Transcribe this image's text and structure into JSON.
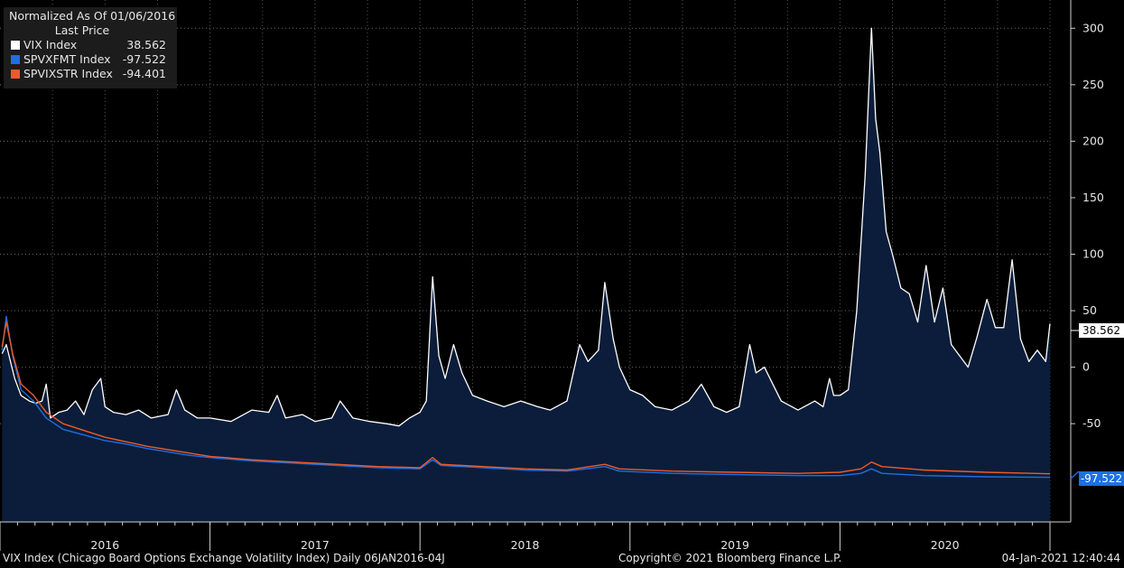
{
  "legend": {
    "header": "Normalized As Of 01/06/2016",
    "subheader": "Last Price",
    "items": [
      {
        "name": "VIX Index",
        "value": "38.562",
        "color": "#ffffff"
      },
      {
        "name": "SPVXFMT Index",
        "value": "-97.522",
        "color": "#1e6fe0"
      },
      {
        "name": "SPVIXSTR Index",
        "value": "-94.401",
        "color": "#f05a28"
      }
    ]
  },
  "price_tags": {
    "vix": "38.562",
    "spvxfmt": "-97.522"
  },
  "footer": {
    "left": "VIX Index (Chicago Board Options Exchange Volatility Index)  Daily 06JAN2016-04J",
    "center": "Copyright© 2021 Bloomberg Finance L.P.",
    "right": "04-Jan-2021 12:40:44"
  },
  "chart_data": {
    "type": "line",
    "ylim": [
      -137,
      325
    ],
    "yticks": [
      -50,
      0,
      50,
      100,
      150,
      200,
      250,
      300
    ],
    "x_categories": [
      "2016",
      "2017",
      "2018",
      "2019",
      "2020"
    ],
    "grid": true,
    "legend_position": "top-left",
    "series": [
      {
        "name": "VIX Index",
        "color": "#ffffff",
        "fill": "#0b1d3a",
        "points": [
          [
            2016.01,
            12
          ],
          [
            2016.03,
            20
          ],
          [
            2016.05,
            5
          ],
          [
            2016.07,
            -10
          ],
          [
            2016.1,
            -25
          ],
          [
            2016.14,
            -30
          ],
          [
            2016.17,
            -32
          ],
          [
            2016.2,
            -30
          ],
          [
            2016.22,
            -15
          ],
          [
            2016.24,
            -45
          ],
          [
            2016.28,
            -40
          ],
          [
            2016.32,
            -38
          ],
          [
            2016.36,
            -30
          ],
          [
            2016.4,
            -42
          ],
          [
            2016.44,
            -20
          ],
          [
            2016.48,
            -10
          ],
          [
            2016.5,
            -35
          ],
          [
            2016.54,
            -40
          ],
          [
            2016.6,
            -42
          ],
          [
            2016.66,
            -38
          ],
          [
            2016.72,
            -45
          ],
          [
            2016.8,
            -42
          ],
          [
            2016.84,
            -20
          ],
          [
            2016.88,
            -38
          ],
          [
            2016.94,
            -45
          ],
          [
            2017.0,
            -45
          ],
          [
            2017.1,
            -48
          ],
          [
            2017.2,
            -38
          ],
          [
            2017.28,
            -40
          ],
          [
            2017.32,
            -25
          ],
          [
            2017.36,
            -45
          ],
          [
            2017.44,
            -42
          ],
          [
            2017.5,
            -48
          ],
          [
            2017.58,
            -45
          ],
          [
            2017.62,
            -30
          ],
          [
            2017.68,
            -45
          ],
          [
            2017.76,
            -48
          ],
          [
            2017.84,
            -50
          ],
          [
            2017.9,
            -52
          ],
          [
            2017.95,
            -45
          ],
          [
            2018.0,
            -40
          ],
          [
            2018.03,
            -30
          ],
          [
            2018.06,
            80
          ],
          [
            2018.09,
            10
          ],
          [
            2018.12,
            -10
          ],
          [
            2018.16,
            20
          ],
          [
            2018.2,
            -5
          ],
          [
            2018.25,
            -25
          ],
          [
            2018.32,
            -30
          ],
          [
            2018.4,
            -35
          ],
          [
            2018.48,
            -30
          ],
          [
            2018.56,
            -35
          ],
          [
            2018.62,
            -38
          ],
          [
            2018.7,
            -30
          ],
          [
            2018.76,
            20
          ],
          [
            2018.8,
            5
          ],
          [
            2018.85,
            15
          ],
          [
            2018.88,
            75
          ],
          [
            2018.92,
            25
          ],
          [
            2018.95,
            0
          ],
          [
            2019.0,
            -20
          ],
          [
            2019.06,
            -25
          ],
          [
            2019.12,
            -35
          ],
          [
            2019.2,
            -38
          ],
          [
            2019.28,
            -30
          ],
          [
            2019.34,
            -15
          ],
          [
            2019.4,
            -35
          ],
          [
            2019.46,
            -40
          ],
          [
            2019.52,
            -35
          ],
          [
            2019.57,
            20
          ],
          [
            2019.6,
            -5
          ],
          [
            2019.64,
            0
          ],
          [
            2019.68,
            -15
          ],
          [
            2019.72,
            -30
          ],
          [
            2019.8,
            -38
          ],
          [
            2019.88,
            -30
          ],
          [
            2019.92,
            -35
          ],
          [
            2019.95,
            -10
          ],
          [
            2019.97,
            -25
          ],
          [
            2020.0,
            -25
          ],
          [
            2020.04,
            -20
          ],
          [
            2020.08,
            50
          ],
          [
            2020.12,
            170
          ],
          [
            2020.15,
            300
          ],
          [
            2020.17,
            220
          ],
          [
            2020.19,
            190
          ],
          [
            2020.22,
            120
          ],
          [
            2020.25,
            100
          ],
          [
            2020.29,
            70
          ],
          [
            2020.33,
            65
          ],
          [
            2020.37,
            40
          ],
          [
            2020.41,
            90
          ],
          [
            2020.45,
            40
          ],
          [
            2020.49,
            70
          ],
          [
            2020.53,
            20
          ],
          [
            2020.57,
            10
          ],
          [
            2020.61,
            0
          ],
          [
            2020.65,
            25
          ],
          [
            2020.7,
            60
          ],
          [
            2020.74,
            35
          ],
          [
            2020.78,
            35
          ],
          [
            2020.82,
            95
          ],
          [
            2020.86,
            25
          ],
          [
            2020.9,
            5
          ],
          [
            2020.94,
            15
          ],
          [
            2020.98,
            5
          ],
          [
            2021.0,
            38.562
          ]
        ]
      },
      {
        "name": "SPVXFMT Index",
        "color": "#1e6fe0",
        "points": [
          [
            2016.01,
            15
          ],
          [
            2016.03,
            45
          ],
          [
            2016.06,
            10
          ],
          [
            2016.1,
            -20
          ],
          [
            2016.16,
            -30
          ],
          [
            2016.22,
            -45
          ],
          [
            2016.3,
            -55
          ],
          [
            2016.4,
            -60
          ],
          [
            2016.5,
            -65
          ],
          [
            2016.6,
            -68
          ],
          [
            2016.7,
            -72
          ],
          [
            2016.8,
            -75
          ],
          [
            2016.9,
            -78
          ],
          [
            2017.0,
            -80
          ],
          [
            2017.2,
            -83
          ],
          [
            2017.4,
            -85
          ],
          [
            2017.6,
            -87
          ],
          [
            2017.8,
            -89
          ],
          [
            2018.0,
            -90
          ],
          [
            2018.06,
            -82
          ],
          [
            2018.1,
            -87
          ],
          [
            2018.3,
            -89
          ],
          [
            2018.5,
            -91
          ],
          [
            2018.7,
            -92
          ],
          [
            2018.88,
            -88
          ],
          [
            2018.95,
            -92
          ],
          [
            2019.2,
            -94
          ],
          [
            2019.5,
            -95
          ],
          [
            2019.8,
            -96
          ],
          [
            2020.0,
            -96
          ],
          [
            2020.1,
            -94
          ],
          [
            2020.15,
            -90
          ],
          [
            2020.2,
            -94
          ],
          [
            2020.4,
            -96
          ],
          [
            2020.7,
            -97
          ],
          [
            2021.0,
            -97.522
          ]
        ]
      },
      {
        "name": "SPVIXSTR Index",
        "color": "#f05a28",
        "points": [
          [
            2016.01,
            18
          ],
          [
            2016.03,
            40
          ],
          [
            2016.06,
            12
          ],
          [
            2016.1,
            -15
          ],
          [
            2016.16,
            -25
          ],
          [
            2016.22,
            -40
          ],
          [
            2016.3,
            -50
          ],
          [
            2016.4,
            -56
          ],
          [
            2016.5,
            -62
          ],
          [
            2016.6,
            -66
          ],
          [
            2016.7,
            -70
          ],
          [
            2016.8,
            -73
          ],
          [
            2016.9,
            -76
          ],
          [
            2017.0,
            -79
          ],
          [
            2017.2,
            -82
          ],
          [
            2017.4,
            -84
          ],
          [
            2017.6,
            -86
          ],
          [
            2017.8,
            -88
          ],
          [
            2018.0,
            -89
          ],
          [
            2018.06,
            -80
          ],
          [
            2018.1,
            -86
          ],
          [
            2018.3,
            -88
          ],
          [
            2018.5,
            -90
          ],
          [
            2018.7,
            -91
          ],
          [
            2018.88,
            -86
          ],
          [
            2018.95,
            -90
          ],
          [
            2019.2,
            -92
          ],
          [
            2019.5,
            -93
          ],
          [
            2019.8,
            -94
          ],
          [
            2020.0,
            -93
          ],
          [
            2020.1,
            -90
          ],
          [
            2020.15,
            -84
          ],
          [
            2020.2,
            -88
          ],
          [
            2020.4,
            -91
          ],
          [
            2020.7,
            -93
          ],
          [
            2021.0,
            -94.401
          ]
        ]
      }
    ]
  }
}
